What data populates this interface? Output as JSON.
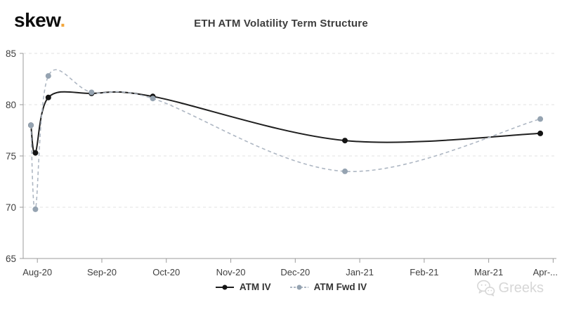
{
  "logo": {
    "text": "skew",
    "dot": ".",
    "dot_color": "#F2A63C"
  },
  "watermark": {
    "text": "Greeks",
    "icon": "wechat-icon",
    "color": "#d7d7d7"
  },
  "chart_data": {
    "type": "line",
    "title": "ETH ATM Volatility Term Structure",
    "xlabel": "",
    "ylabel": "",
    "x_tick_labels": [
      "Aug-20",
      "Sep-20",
      "Oct-20",
      "Nov-20",
      "Dec-20",
      "Jan-21",
      "Feb-21",
      "Mar-21",
      "Apr-..."
    ],
    "x_tick_positions": [
      0,
      1,
      2,
      3,
      4,
      5,
      6,
      7,
      8
    ],
    "xlim": [
      -0.22,
      8.05
    ],
    "y_ticks": [
      65,
      70,
      75,
      80,
      85
    ],
    "ylim": [
      65,
      85
    ],
    "grid": "horizontal-dashed",
    "legend_position": "bottom-center",
    "axis_color": "#9b9b9b",
    "grid_color": "#e2e2e2",
    "tick_label_color": "#3f3f3f",
    "series": [
      {
        "name": "ATM IV",
        "color": "#1f1f1f",
        "marker_color": "#141414",
        "line_style": "solid",
        "x": [
          -0.1,
          -0.03,
          0.17,
          0.84,
          1.79,
          4.77,
          7.8
        ],
        "values": [
          78.0,
          75.3,
          80.7,
          81.1,
          80.8,
          76.5,
          77.2
        ]
      },
      {
        "name": "ATM Fwd IV",
        "color": "#aeb7c3",
        "marker_color": "#95a3b1",
        "line_style": "dashed",
        "x": [
          -0.1,
          -0.03,
          0.17,
          0.84,
          1.79,
          4.77,
          7.8
        ],
        "values": [
          78.0,
          69.8,
          82.8,
          81.2,
          80.6,
          73.5,
          78.6
        ]
      }
    ]
  }
}
